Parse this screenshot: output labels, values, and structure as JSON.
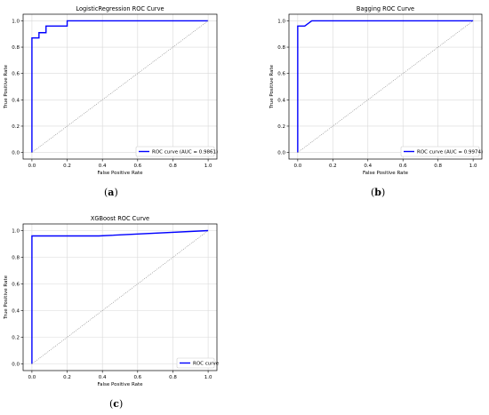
{
  "chart_data": [
    {
      "type": "line",
      "panel": "(a)",
      "title": "LogisticRegression ROC Curve",
      "xlabel": "False Positive Rate",
      "ylabel": "True Positive Rate",
      "xlim": [
        0.0,
        1.0
      ],
      "ylim": [
        0.0,
        1.0
      ],
      "ticks": [
        "0.0",
        "0.2",
        "0.4",
        "0.6",
        "0.8",
        "1.0"
      ],
      "grid": true,
      "legend_position": "lower right",
      "series": [
        {
          "name": "ROC curve (AUC = 0.9861)",
          "color": "#0000ff",
          "x": [
            0.0,
            0.0,
            0.0,
            0.04,
            0.04,
            0.08,
            0.08,
            0.2,
            0.2,
            1.0
          ],
          "y": [
            0.0,
            0.87,
            0.87,
            0.87,
            0.91,
            0.91,
            0.96,
            0.96,
            1.0,
            1.0
          ]
        },
        {
          "name": "",
          "color": "#808080",
          "style": "dotted",
          "x": [
            0.0,
            1.0
          ],
          "y": [
            0.0,
            1.0
          ]
        }
      ]
    },
    {
      "type": "line",
      "panel": "(b)",
      "title": "Bagging ROC Curve",
      "xlabel": "False Positive Rate",
      "ylabel": "True Positive Rate",
      "xlim": [
        0.0,
        1.0
      ],
      "ylim": [
        0.0,
        1.0
      ],
      "ticks": [
        "0.0",
        "0.2",
        "0.4",
        "0.6",
        "0.8",
        "1.0"
      ],
      "grid": true,
      "legend_position": "lower right",
      "series": [
        {
          "name": "ROC curve (AUC = 0.9974)",
          "color": "#0000ff",
          "x": [
            0.0,
            0.0,
            0.04,
            0.08,
            0.08,
            1.0
          ],
          "y": [
            0.0,
            0.96,
            0.96,
            1.0,
            1.0,
            1.0
          ]
        },
        {
          "name": "",
          "color": "#808080",
          "style": "dotted",
          "x": [
            0.0,
            1.0
          ],
          "y": [
            0.0,
            1.0
          ]
        }
      ]
    },
    {
      "type": "line",
      "panel": "(c)",
      "title": "XGBoost ROC Curve",
      "xlabel": "False Positive Rate",
      "ylabel": "True Positive Rate",
      "xlim": [
        0.0,
        1.0
      ],
      "ylim": [
        0.0,
        1.0
      ],
      "ticks": [
        "0.0",
        "0.2",
        "0.4",
        "0.6",
        "0.8",
        "1.0"
      ],
      "grid": true,
      "legend_position": "lower right",
      "series": [
        {
          "name": "ROC curve",
          "color": "#0000ff",
          "x": [
            0.0,
            0.0,
            0.38,
            1.0
          ],
          "y": [
            0.0,
            0.96,
            0.96,
            1.0
          ]
        },
        {
          "name": "",
          "color": "#808080",
          "style": "dotted",
          "x": [
            0.0,
            1.0
          ],
          "y": [
            0.0,
            1.0
          ]
        }
      ]
    }
  ]
}
